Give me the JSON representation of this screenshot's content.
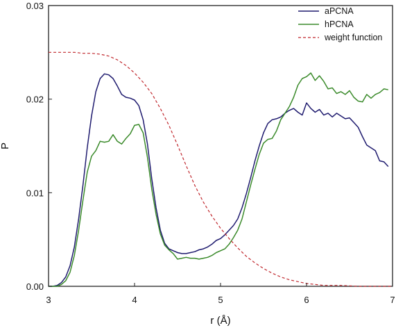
{
  "chart_data": {
    "type": "line",
    "title": "",
    "xlabel": "r (Å)",
    "ylabel": "P",
    "xlim": [
      3,
      7
    ],
    "ylim": [
      0,
      0.03
    ],
    "x_ticks": [
      3,
      4,
      5,
      6,
      7
    ],
    "x_tick_labels": [
      "3",
      "4",
      "5",
      "6",
      "7"
    ],
    "y_ticks": [
      0,
      0.01,
      0.02,
      0.03
    ],
    "y_tick_labels": [
      "0.00",
      "0.01",
      "0.02",
      "0.03"
    ],
    "grid": false,
    "legend_position": "top-right",
    "series": [
      {
        "name": "aPCNA",
        "color": "#1e1a6e",
        "dash": "solid",
        "points": [
          [
            3.0,
            0
          ],
          [
            3.05,
            0
          ],
          [
            3.1,
            0.0001
          ],
          [
            3.15,
            0.0004
          ],
          [
            3.2,
            0.001
          ],
          [
            3.25,
            0.0022
          ],
          [
            3.3,
            0.0042
          ],
          [
            3.35,
            0.0072
          ],
          [
            3.4,
            0.0108
          ],
          [
            3.45,
            0.0148
          ],
          [
            3.5,
            0.0182
          ],
          [
            3.55,
            0.0208
          ],
          [
            3.6,
            0.0222
          ],
          [
            3.65,
            0.0227
          ],
          [
            3.7,
            0.0226
          ],
          [
            3.75,
            0.0222
          ],
          [
            3.8,
            0.0214
          ],
          [
            3.85,
            0.0205
          ],
          [
            3.9,
            0.0202
          ],
          [
            3.95,
            0.0201
          ],
          [
            4.0,
            0.0199
          ],
          [
            4.05,
            0.0193
          ],
          [
            4.1,
            0.0178
          ],
          [
            4.15,
            0.0152
          ],
          [
            4.2,
            0.0115
          ],
          [
            4.25,
            0.0084
          ],
          [
            4.3,
            0.006
          ],
          [
            4.35,
            0.0046
          ],
          [
            4.4,
            0.004
          ],
          [
            4.45,
            0.0038
          ],
          [
            4.5,
            0.0036
          ],
          [
            4.55,
            0.0035
          ],
          [
            4.6,
            0.0035
          ],
          [
            4.65,
            0.0036
          ],
          [
            4.7,
            0.0037
          ],
          [
            4.75,
            0.0039
          ],
          [
            4.8,
            0.004
          ],
          [
            4.85,
            0.0042
          ],
          [
            4.9,
            0.0045
          ],
          [
            4.95,
            0.0049
          ],
          [
            5.0,
            0.0051
          ],
          [
            5.05,
            0.0055
          ],
          [
            5.1,
            0.006
          ],
          [
            5.15,
            0.0065
          ],
          [
            5.2,
            0.0072
          ],
          [
            5.25,
            0.0084
          ],
          [
            5.3,
            0.0099
          ],
          [
            5.35,
            0.0116
          ],
          [
            5.4,
            0.0134
          ],
          [
            5.45,
            0.015
          ],
          [
            5.5,
            0.0164
          ],
          [
            5.55,
            0.0174
          ],
          [
            5.6,
            0.0178
          ],
          [
            5.65,
            0.0179
          ],
          [
            5.7,
            0.0181
          ],
          [
            5.75,
            0.0185
          ],
          [
            5.8,
            0.0188
          ],
          [
            5.85,
            0.019
          ],
          [
            5.9,
            0.0186
          ],
          [
            5.95,
            0.0183
          ],
          [
            6.0,
            0.0196
          ],
          [
            6.05,
            0.019
          ],
          [
            6.1,
            0.0186
          ],
          [
            6.15,
            0.0189
          ],
          [
            6.2,
            0.0183
          ],
          [
            6.25,
            0.0185
          ],
          [
            6.3,
            0.0181
          ],
          [
            6.35,
            0.0185
          ],
          [
            6.4,
            0.0182
          ],
          [
            6.45,
            0.0179
          ],
          [
            6.5,
            0.018
          ],
          [
            6.55,
            0.0175
          ],
          [
            6.6,
            0.017
          ],
          [
            6.65,
            0.016
          ],
          [
            6.7,
            0.0151
          ],
          [
            6.75,
            0.0148
          ],
          [
            6.8,
            0.0145
          ],
          [
            6.85,
            0.0134
          ],
          [
            6.9,
            0.0133
          ],
          [
            6.95,
            0.0128
          ]
        ]
      },
      {
        "name": "hPCNA",
        "color": "#3a8a2a",
        "dash": "solid",
        "points": [
          [
            3.0,
            0
          ],
          [
            3.05,
            0
          ],
          [
            3.1,
            0
          ],
          [
            3.15,
            0.0002
          ],
          [
            3.2,
            0.0006
          ],
          [
            3.25,
            0.0015
          ],
          [
            3.3,
            0.0033
          ],
          [
            3.35,
            0.006
          ],
          [
            3.4,
            0.0092
          ],
          [
            3.45,
            0.0122
          ],
          [
            3.5,
            0.0139
          ],
          [
            3.55,
            0.0145
          ],
          [
            3.6,
            0.0155
          ],
          [
            3.65,
            0.0154
          ],
          [
            3.7,
            0.0155
          ],
          [
            3.75,
            0.0162
          ],
          [
            3.8,
            0.0155
          ],
          [
            3.85,
            0.0152
          ],
          [
            3.9,
            0.0158
          ],
          [
            3.95,
            0.0163
          ],
          [
            4.0,
            0.0172
          ],
          [
            4.05,
            0.0173
          ],
          [
            4.1,
            0.0164
          ],
          [
            4.15,
            0.0138
          ],
          [
            4.2,
            0.0104
          ],
          [
            4.25,
            0.0077
          ],
          [
            4.3,
            0.0056
          ],
          [
            4.35,
            0.0044
          ],
          [
            4.4,
            0.0039
          ],
          [
            4.45,
            0.0035
          ],
          [
            4.5,
            0.0029
          ],
          [
            4.55,
            0.003
          ],
          [
            4.6,
            0.0031
          ],
          [
            4.65,
            0.003
          ],
          [
            4.7,
            0.003
          ],
          [
            4.75,
            0.0029
          ],
          [
            4.8,
            0.003
          ],
          [
            4.85,
            0.0031
          ],
          [
            4.9,
            0.0033
          ],
          [
            4.95,
            0.0036
          ],
          [
            5.0,
            0.0038
          ],
          [
            5.05,
            0.004
          ],
          [
            5.1,
            0.0045
          ],
          [
            5.15,
            0.0052
          ],
          [
            5.2,
            0.006
          ],
          [
            5.25,
            0.0072
          ],
          [
            5.3,
            0.009
          ],
          [
            5.35,
            0.0108
          ],
          [
            5.4,
            0.0125
          ],
          [
            5.45,
            0.0141
          ],
          [
            5.5,
            0.0153
          ],
          [
            5.55,
            0.0157
          ],
          [
            5.6,
            0.0158
          ],
          [
            5.65,
            0.0166
          ],
          [
            5.7,
            0.0178
          ],
          [
            5.75,
            0.0185
          ],
          [
            5.8,
            0.0192
          ],
          [
            5.85,
            0.0202
          ],
          [
            5.9,
            0.0215
          ],
          [
            5.95,
            0.0222
          ],
          [
            6.0,
            0.0224
          ],
          [
            6.05,
            0.0228
          ],
          [
            6.1,
            0.022
          ],
          [
            6.15,
            0.0225
          ],
          [
            6.2,
            0.0219
          ],
          [
            6.25,
            0.0211
          ],
          [
            6.3,
            0.0212
          ],
          [
            6.35,
            0.0206
          ],
          [
            6.4,
            0.0208
          ],
          [
            6.45,
            0.0205
          ],
          [
            6.5,
            0.0209
          ],
          [
            6.55,
            0.0202
          ],
          [
            6.6,
            0.0198
          ],
          [
            6.65,
            0.0197
          ],
          [
            6.7,
            0.0205
          ],
          [
            6.75,
            0.0201
          ],
          [
            6.8,
            0.0205
          ],
          [
            6.85,
            0.0207
          ],
          [
            6.9,
            0.0211
          ],
          [
            6.95,
            0.021
          ]
        ]
      },
      {
        "name": "weight function",
        "color": "#c0272d",
        "dash": "dashed",
        "points": [
          [
            3.0,
            0.025
          ],
          [
            3.1,
            0.025
          ],
          [
            3.2,
            0.025
          ],
          [
            3.3,
            0.025
          ],
          [
            3.4,
            0.0249
          ],
          [
            3.5,
            0.0249
          ],
          [
            3.6,
            0.0248
          ],
          [
            3.7,
            0.0246
          ],
          [
            3.8,
            0.0242
          ],
          [
            3.9,
            0.0236
          ],
          [
            4.0,
            0.0228
          ],
          [
            4.1,
            0.0218
          ],
          [
            4.2,
            0.0206
          ],
          [
            4.3,
            0.019
          ],
          [
            4.4,
            0.0172
          ],
          [
            4.5,
            0.0151
          ],
          [
            4.6,
            0.0129
          ],
          [
            4.7,
            0.0108
          ],
          [
            4.8,
            0.009
          ],
          [
            4.9,
            0.0075
          ],
          [
            5.0,
            0.0062
          ],
          [
            5.1,
            0.0051
          ],
          [
            5.2,
            0.0041
          ],
          [
            5.3,
            0.0032
          ],
          [
            5.4,
            0.0025
          ],
          [
            5.5,
            0.0019
          ],
          [
            5.6,
            0.0014
          ],
          [
            5.7,
            0.001
          ],
          [
            5.8,
            0.0007
          ],
          [
            5.9,
            0.0005
          ],
          [
            6.0,
            0.0003
          ],
          [
            6.1,
            0.0002
          ],
          [
            6.2,
            0.0001
          ],
          [
            6.4,
            0.0001
          ],
          [
            6.6,
            0
          ],
          [
            6.8,
            0
          ],
          [
            7.0,
            0
          ]
        ]
      }
    ]
  }
}
